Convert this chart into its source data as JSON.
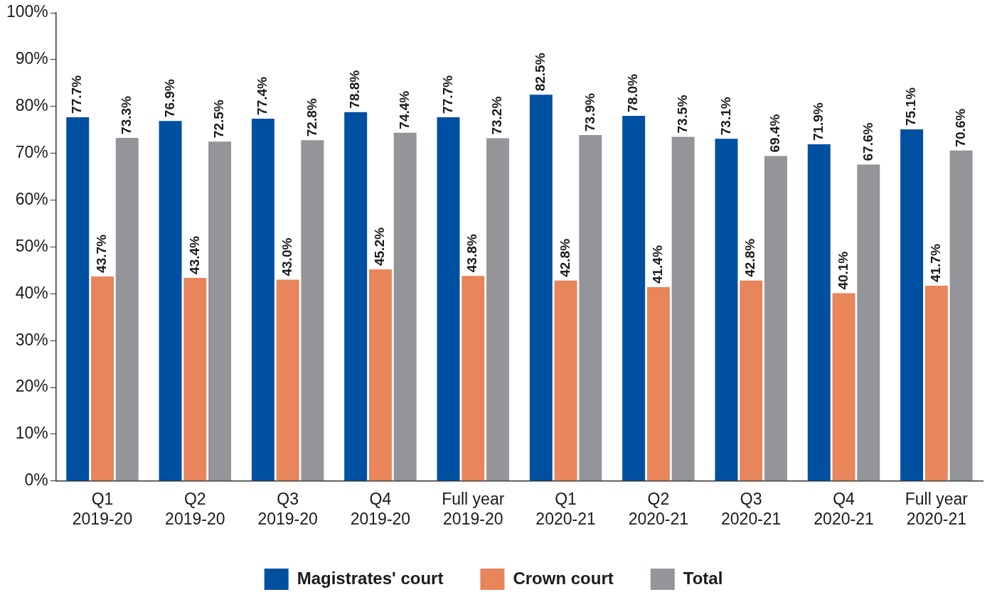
{
  "chart_data": {
    "type": "bar",
    "categories": [
      "Q1\n2019-20",
      "Q2\n2019-20",
      "Q3\n2019-20",
      "Q4\n2019-20",
      "Full year\n2019-20",
      "Q1\n2020-21",
      "Q2\n2020-21",
      "Q3\n2020-21",
      "Q4\n2020-21",
      "Full year\n2020-21"
    ],
    "series": [
      {
        "name": "Magistrates' court",
        "color": "#0050a2",
        "values": [
          77.7,
          76.9,
          77.4,
          78.8,
          77.7,
          82.5,
          78.0,
          73.1,
          71.9,
          75.1
        ],
        "value_labels": [
          "77.7%",
          "76.9%",
          "77.4%",
          "78.8%",
          "77.7%",
          "82.5%",
          "78.0%",
          "73.1%",
          "71.9%",
          "75.1%"
        ]
      },
      {
        "name": "Crown court",
        "color": "#e8855b",
        "values": [
          43.7,
          43.4,
          43.0,
          45.2,
          43.8,
          42.8,
          41.4,
          42.8,
          40.1,
          41.7
        ],
        "value_labels": [
          "43.7%",
          "43.4%",
          "43.0%",
          "45.2%",
          "43.8%",
          "42.8%",
          "41.4%",
          "42.8%",
          "40.1%",
          "41.7%"
        ]
      },
      {
        "name": "Total",
        "color": "#939598",
        "values": [
          73.3,
          72.5,
          72.8,
          74.4,
          73.2,
          73.9,
          73.5,
          69.4,
          67.6,
          70.6
        ],
        "value_labels": [
          "73.3%",
          "72.5%",
          "72.8%",
          "74.4%",
          "73.2%",
          "73.9%",
          "73.5%",
          "69.4%",
          "67.6%",
          "70.6%"
        ]
      }
    ],
    "ylim": [
      0,
      100
    ],
    "yticks": [
      {
        "value": 0,
        "label": "0%"
      },
      {
        "value": 10,
        "label": "10%"
      },
      {
        "value": 20,
        "label": "20%"
      },
      {
        "value": 30,
        "label": "30%"
      },
      {
        "value": 40,
        "label": "40%"
      },
      {
        "value": 50,
        "label": "50%"
      },
      {
        "value": 60,
        "label": "60%"
      },
      {
        "value": 70,
        "label": "70%"
      },
      {
        "value": 80,
        "label": "80%"
      },
      {
        "value": 90,
        "label": "90%"
      },
      {
        "value": 100,
        "label": "100%"
      }
    ],
    "grid": false,
    "legend": "bottom"
  }
}
